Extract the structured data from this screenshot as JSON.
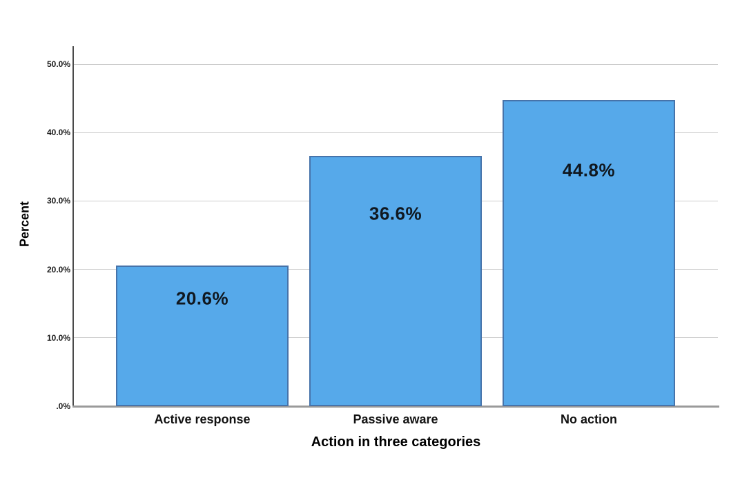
{
  "chart_data": {
    "type": "bar",
    "title": "",
    "categories": [
      "Active response",
      "Passive aware",
      "No action"
    ],
    "values": [
      20.6,
      36.6,
      44.8
    ],
    "value_labels": [
      "20.6%",
      "36.6%",
      "44.8%"
    ],
    "xlabel": "Action in three categories",
    "ylabel": "Percent",
    "ylim": [
      0,
      52.5
    ],
    "yticks": [
      {
        "value": 0,
        "label": ".0%"
      },
      {
        "value": 10,
        "label": "10.0%"
      },
      {
        "value": 20,
        "label": "20.0%"
      },
      {
        "value": 30,
        "label": "30.0%"
      },
      {
        "value": 40,
        "label": "40.0%"
      },
      {
        "value": 50,
        "label": "50.0%"
      }
    ],
    "grid": "horizontal",
    "legend": "none",
    "colors": {
      "background": "#FFFFFF",
      "bar_fill": "#56A9EA",
      "bar_border": "#4673AA",
      "value_label_text": "#101820",
      "gridline": "#CCCCCC",
      "y_axis_line": "#4A4A4A",
      "x_axis_line": "#9A9A9A",
      "tick_text": "#1A1A1A",
      "axis_title_text": "#111111"
    }
  }
}
